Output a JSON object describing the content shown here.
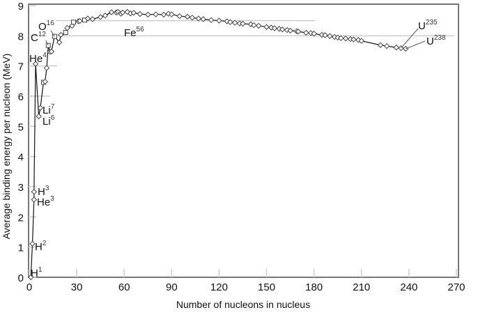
{
  "chart_data": {
    "type": "line",
    "title": "",
    "xlabel": "Number of nucleons in nucleus",
    "ylabel": "Average binding energy per nucleon (MeV)",
    "xlim": [
      0,
      270
    ],
    "ylim": [
      0,
      9
    ],
    "xticks": [
      0,
      30,
      60,
      90,
      120,
      150,
      180,
      210,
      240,
      270
    ],
    "yticks": [
      0,
      1,
      2,
      3,
      4,
      5,
      6,
      7,
      8,
      9
    ],
    "reference_lines": [
      8,
      8.5
    ],
    "series": [
      {
        "name": "binding energy",
        "points": [
          [
            1,
            0
          ],
          [
            2,
            1.11
          ],
          [
            3,
            2.57
          ],
          [
            3,
            2.83
          ],
          [
            4,
            7.07
          ],
          [
            6,
            5.33
          ],
          [
            7,
            5.61
          ],
          [
            9,
            6.46
          ],
          [
            10,
            6.48
          ],
          [
            11,
            6.93
          ],
          [
            12,
            7.68
          ],
          [
            13,
            7.47
          ],
          [
            14,
            7.48
          ],
          [
            16,
            7.98
          ],
          [
            19,
            7.78
          ],
          [
            20,
            8.03
          ],
          [
            23,
            8.11
          ],
          [
            24,
            8.26
          ],
          [
            27,
            8.33
          ],
          [
            28,
            8.45
          ],
          [
            31,
            8.48
          ],
          [
            32,
            8.49
          ],
          [
            35,
            8.52
          ],
          [
            37,
            8.57
          ],
          [
            40,
            8.55
          ],
          [
            45,
            8.62
          ],
          [
            48,
            8.67
          ],
          [
            52,
            8.78
          ],
          [
            55,
            8.77
          ],
          [
            56,
            8.79
          ],
          [
            58,
            8.73
          ],
          [
            59,
            8.77
          ],
          [
            62,
            8.79
          ],
          [
            64,
            8.74
          ],
          [
            66,
            8.76
          ],
          [
            70,
            8.72
          ],
          [
            75,
            8.7
          ],
          [
            80,
            8.71
          ],
          [
            85,
            8.7
          ],
          [
            88,
            8.73
          ],
          [
            90,
            8.71
          ],
          [
            95,
            8.65
          ],
          [
            100,
            8.63
          ],
          [
            103,
            8.6
          ],
          [
            107,
            8.57
          ],
          [
            110,
            8.55
          ],
          [
            115,
            8.52
          ],
          [
            120,
            8.5
          ],
          [
            125,
            8.48
          ],
          [
            127,
            8.45
          ],
          [
            130,
            8.43
          ],
          [
            133,
            8.41
          ],
          [
            135,
            8.4
          ],
          [
            140,
            8.38
          ],
          [
            142,
            8.35
          ],
          [
            145,
            8.33
          ],
          [
            150,
            8.29
          ],
          [
            153,
            8.27
          ],
          [
            155,
            8.25
          ],
          [
            158,
            8.23
          ],
          [
            160,
            8.21
          ],
          [
            163,
            8.19
          ],
          [
            165,
            8.17
          ],
          [
            169,
            8.15
          ],
          [
            170,
            8.14
          ],
          [
            175,
            8.1
          ],
          [
            178,
            8.09
          ],
          [
            180,
            8.07
          ],
          [
            185,
            8.03
          ],
          [
            187,
            8.02
          ],
          [
            190,
            7.99
          ],
          [
            193,
            7.96
          ],
          [
            195,
            7.94
          ],
          [
            197,
            7.92
          ],
          [
            200,
            7.91
          ],
          [
            203,
            7.89
          ],
          [
            205,
            7.88
          ],
          [
            208,
            7.86
          ],
          [
            210,
            7.83
          ],
          [
            222,
            7.69
          ],
          [
            226,
            7.66
          ],
          [
            232,
            7.61
          ],
          [
            235,
            7.59
          ],
          [
            238,
            7.57
          ]
        ]
      }
    ],
    "annotations": [
      {
        "el": "H",
        "mass": "1",
        "x": 1,
        "y": 0
      },
      {
        "el": "H",
        "mass": "2",
        "x": 2,
        "y": 1.11
      },
      {
        "el": "H",
        "mass": "3",
        "x": 3,
        "y": 2.83
      },
      {
        "el": "He",
        "mass": "3",
        "x": 3,
        "y": 2.57
      },
      {
        "el": "He",
        "mass": "4",
        "x": 4,
        "y": 7.07
      },
      {
        "el": "Li",
        "mass": "7",
        "x": 7,
        "y": 5.61
      },
      {
        "el": "Li",
        "mass": "6",
        "x": 6,
        "y": 5.33
      },
      {
        "el": "C",
        "mass": "12",
        "x": 12,
        "y": 7.68
      },
      {
        "el": "O",
        "mass": "16",
        "x": 16,
        "y": 7.98
      },
      {
        "el": "Fe",
        "mass": "56",
        "x": 56,
        "y": 8.79
      },
      {
        "el": "U",
        "mass": "235",
        "x": 235,
        "y": 7.59
      },
      {
        "el": "U",
        "mass": "238",
        "x": 238,
        "y": 7.57
      }
    ]
  }
}
